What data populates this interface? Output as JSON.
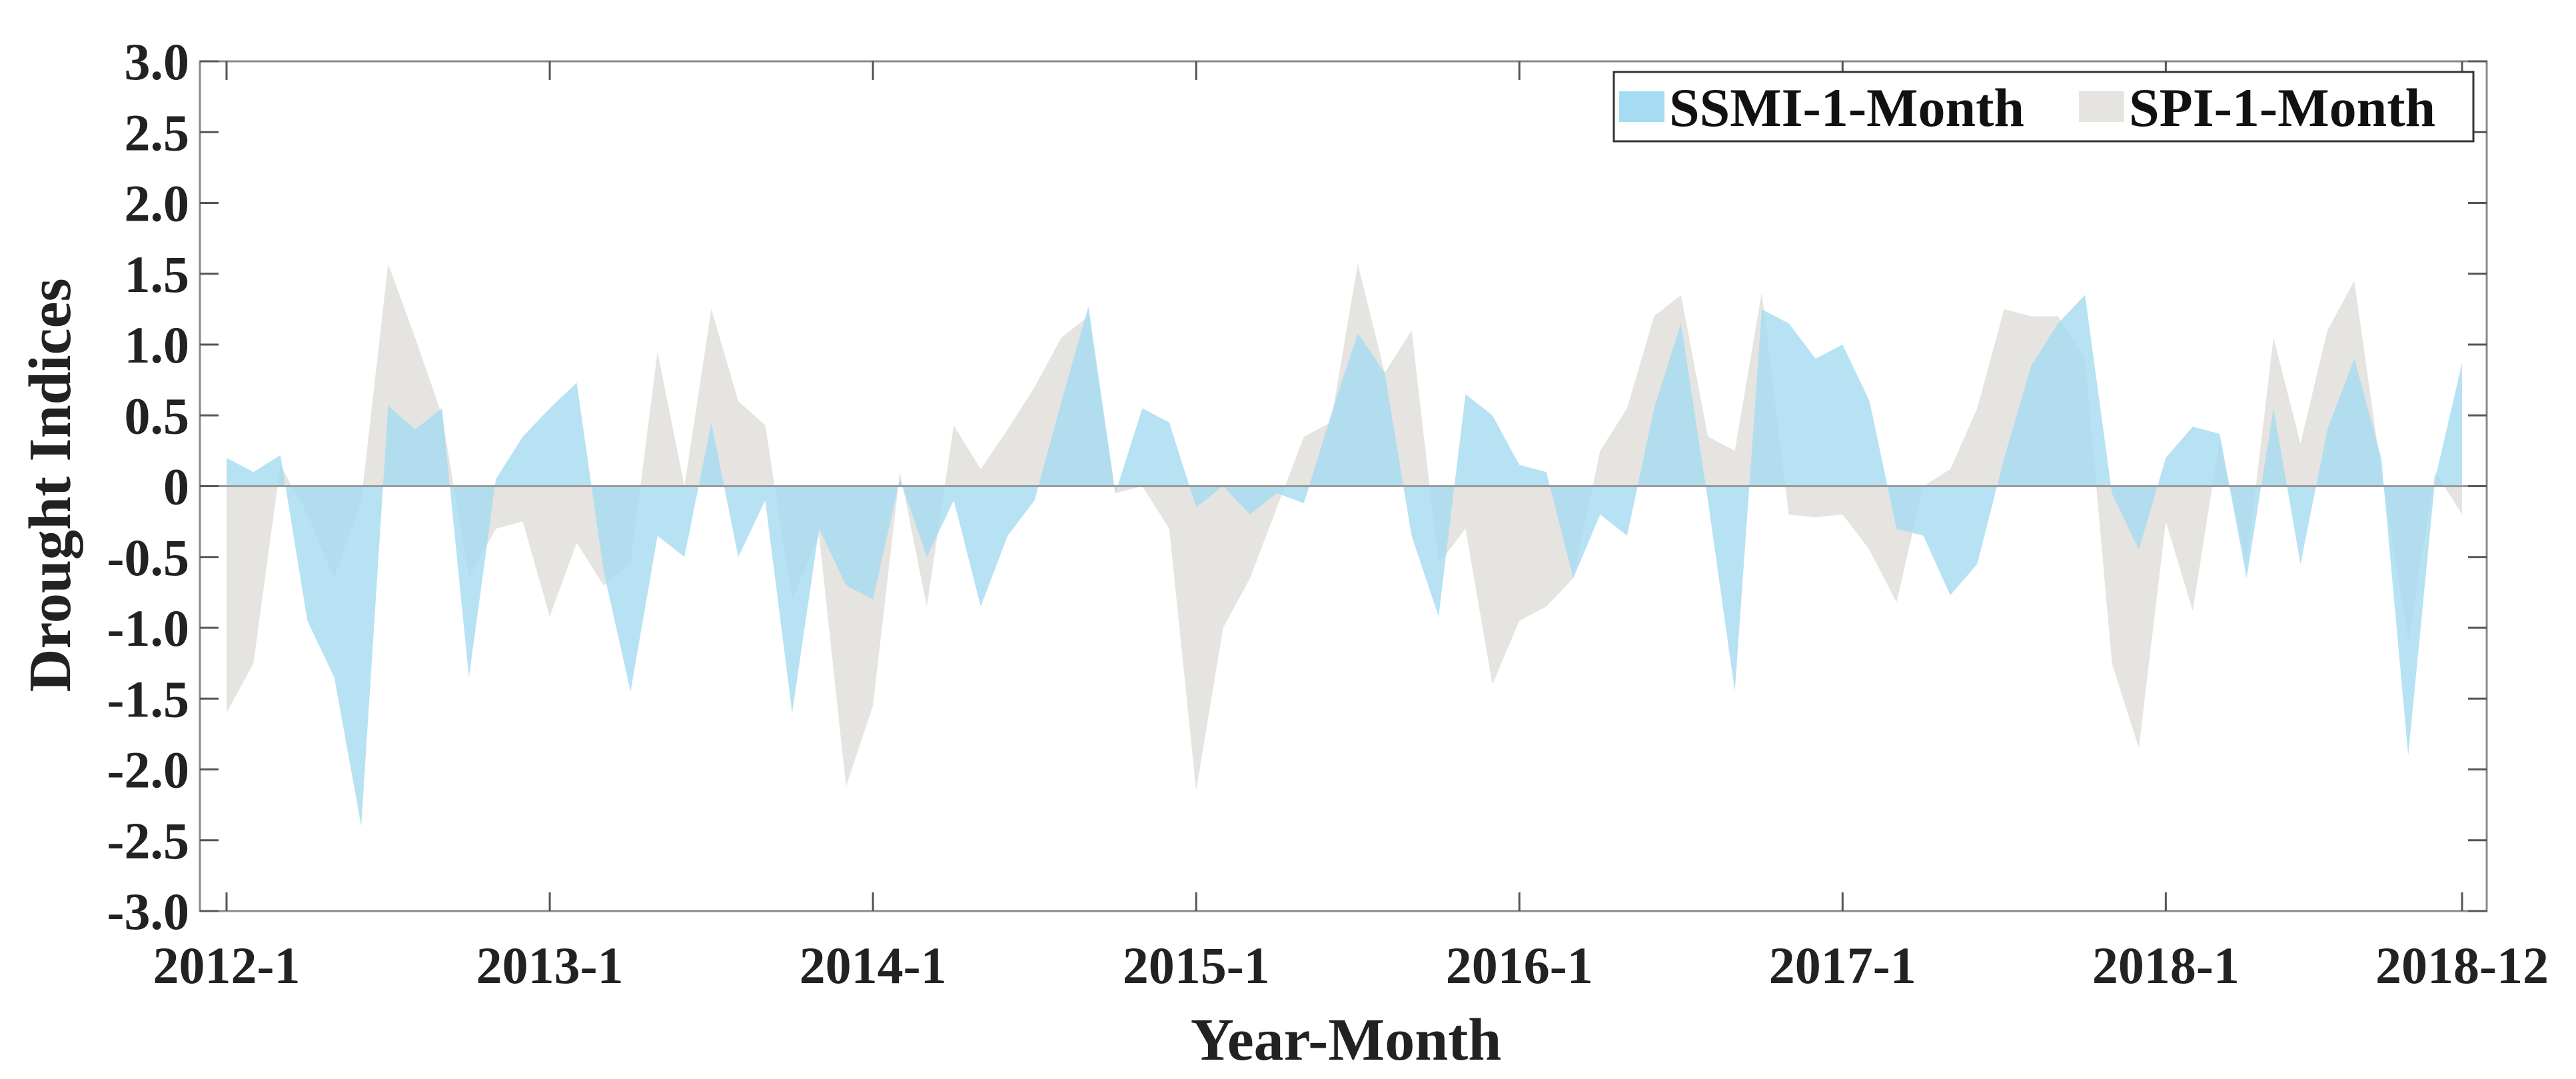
{
  "chart_data": {
    "type": "area",
    "title": "",
    "xlabel": "Year-Month",
    "ylabel": "Drought Indices",
    "ylim": [
      -3.0,
      3.0
    ],
    "yticks": [
      -3.0,
      -2.5,
      -2.0,
      -1.5,
      -1.0,
      -0.5,
      0,
      0.5,
      1.0,
      1.5,
      2.0,
      2.5,
      3.0
    ],
    "ytick_labels": [
      "-3.0",
      "-2.5",
      "-2.0",
      "-1.5",
      "-1.0",
      "-0.5",
      "0",
      "0.5",
      "1.0",
      "1.5",
      "2.0",
      "2.5",
      "3.0"
    ],
    "xticks": [
      {
        "label": "2012-1",
        "index": 0
      },
      {
        "label": "2013-1",
        "index": 12
      },
      {
        "label": "2014-1",
        "index": 24
      },
      {
        "label": "2015-1",
        "index": 36
      },
      {
        "label": "2016-1",
        "index": 48
      },
      {
        "label": "2017-1",
        "index": 60
      },
      {
        "label": "2018-1",
        "index": 72
      },
      {
        "label": "2018-12",
        "index": 83
      }
    ],
    "grid": false,
    "legend_position": "top-right",
    "series": [
      {
        "name": "SSMI-1-Month",
        "color": "#a6dcf2",
        "values": [
          0.2,
          0.1,
          0.22,
          -0.95,
          -1.35,
          -2.4,
          0.57,
          0.4,
          0.55,
          -1.35,
          0.05,
          0.35,
          0.55,
          0.73,
          -0.6,
          -1.45,
          -0.35,
          -0.5,
          0.45,
          -0.5,
          -0.1,
          -1.6,
          -0.3,
          -0.7,
          -0.8,
          0.05,
          -0.5,
          -0.1,
          -0.85,
          -0.35,
          -0.1,
          0.6,
          1.27,
          -0.05,
          0.55,
          0.45,
          -0.15,
          0.0,
          -0.2,
          -0.05,
          -0.12,
          0.5,
          1.08,
          0.8,
          -0.35,
          -0.92,
          0.65,
          0.5,
          0.15,
          0.1,
          -0.65,
          -0.2,
          -0.35,
          0.55,
          1.15,
          -0.1,
          -1.45,
          1.25,
          1.15,
          0.9,
          1.0,
          0.6,
          -0.3,
          -0.35,
          -0.77,
          -0.55,
          0.2,
          0.85,
          1.15,
          1.35,
          -0.05,
          -0.45,
          0.2,
          0.42,
          0.37,
          -0.65,
          0.55,
          -0.55,
          0.4,
          0.9,
          0.2,
          -1.9,
          0.05,
          0.87
        ]
      },
      {
        "name": "SPI-1-Month",
        "color": "#e6e4e0",
        "values": [
          -1.6,
          -1.25,
          0.15,
          -0.2,
          -0.65,
          -0.1,
          1.57,
          1.05,
          0.5,
          -0.65,
          -0.3,
          -0.25,
          -0.92,
          -0.4,
          -0.7,
          -0.55,
          0.95,
          0.0,
          1.25,
          0.6,
          0.43,
          -0.8,
          -0.35,
          -2.12,
          -1.55,
          0.1,
          -0.85,
          0.43,
          0.12,
          0.4,
          0.7,
          1.05,
          1.2,
          -0.05,
          0.0,
          -0.3,
          -2.15,
          -1.0,
          -0.65,
          -0.15,
          0.35,
          0.45,
          1.57,
          0.8,
          1.1,
          -0.55,
          -0.3,
          -1.4,
          -0.95,
          -0.85,
          -0.65,
          0.25,
          0.55,
          1.2,
          1.35,
          0.35,
          0.25,
          1.37,
          -0.2,
          -0.22,
          -0.2,
          -0.45,
          -0.82,
          0.0,
          0.12,
          0.55,
          1.25,
          1.2,
          1.2,
          0.9,
          -1.25,
          -1.85,
          -0.25,
          -0.88,
          0.33,
          -0.55,
          1.05,
          0.3,
          1.1,
          1.45,
          0.1,
          -1.1,
          0.1,
          -0.2
        ]
      }
    ]
  }
}
